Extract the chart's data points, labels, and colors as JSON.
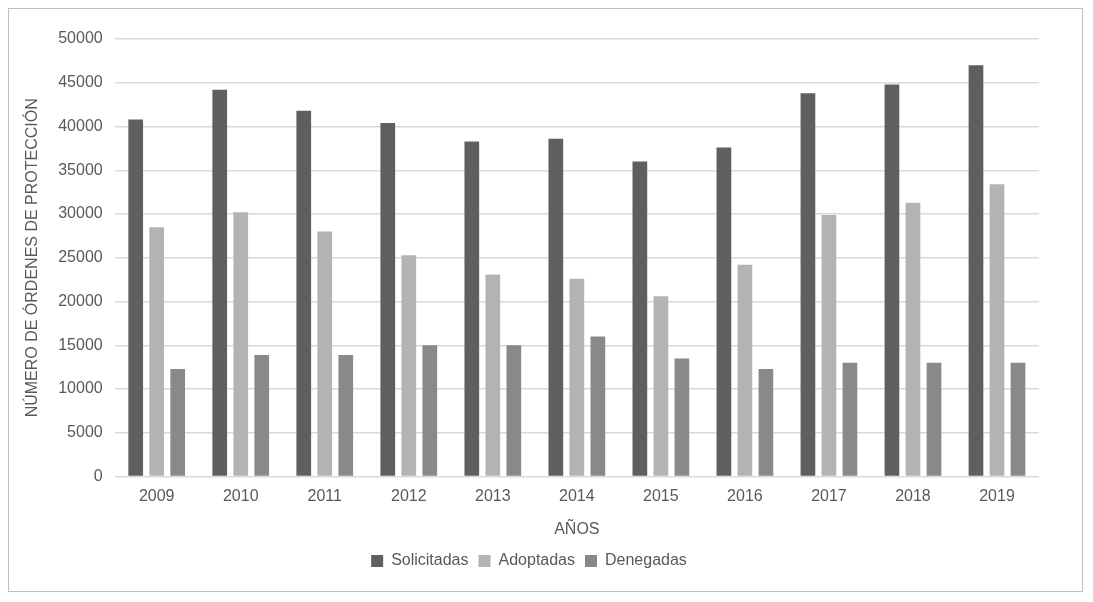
{
  "chart_data": {
    "type": "bar",
    "xlabel": "AÑOS",
    "ylabel": "NÚMERO DE ÓRDENES DE PROTECCIÓN",
    "categories": [
      "2009",
      "2010",
      "2011",
      "2012",
      "2013",
      "2014",
      "2015",
      "2016",
      "2017",
      "2018",
      "2019"
    ],
    "series": [
      {
        "name": "Solicitadas",
        "color": "#5f5f5f",
        "values": [
          40800,
          44200,
          41800,
          40400,
          38300,
          38600,
          36000,
          37600,
          43800,
          44800,
          47000
        ]
      },
      {
        "name": "Adoptadas",
        "color": "#b3b3b3",
        "values": [
          28500,
          30200,
          28000,
          25300,
          23100,
          22600,
          20600,
          24200,
          29900,
          31300,
          33400
        ]
      },
      {
        "name": "Denegadas",
        "color": "#898989",
        "values": [
          12300,
          13900,
          13900,
          15000,
          15000,
          16000,
          13500,
          12300,
          13000,
          13000,
          13000
        ]
      }
    ],
    "ylim": [
      0,
      50000
    ],
    "yticks": [
      0,
      5000,
      10000,
      15000,
      20000,
      25000,
      30000,
      35000,
      40000,
      45000,
      50000
    ],
    "grid": "y",
    "legend": "bottom"
  }
}
